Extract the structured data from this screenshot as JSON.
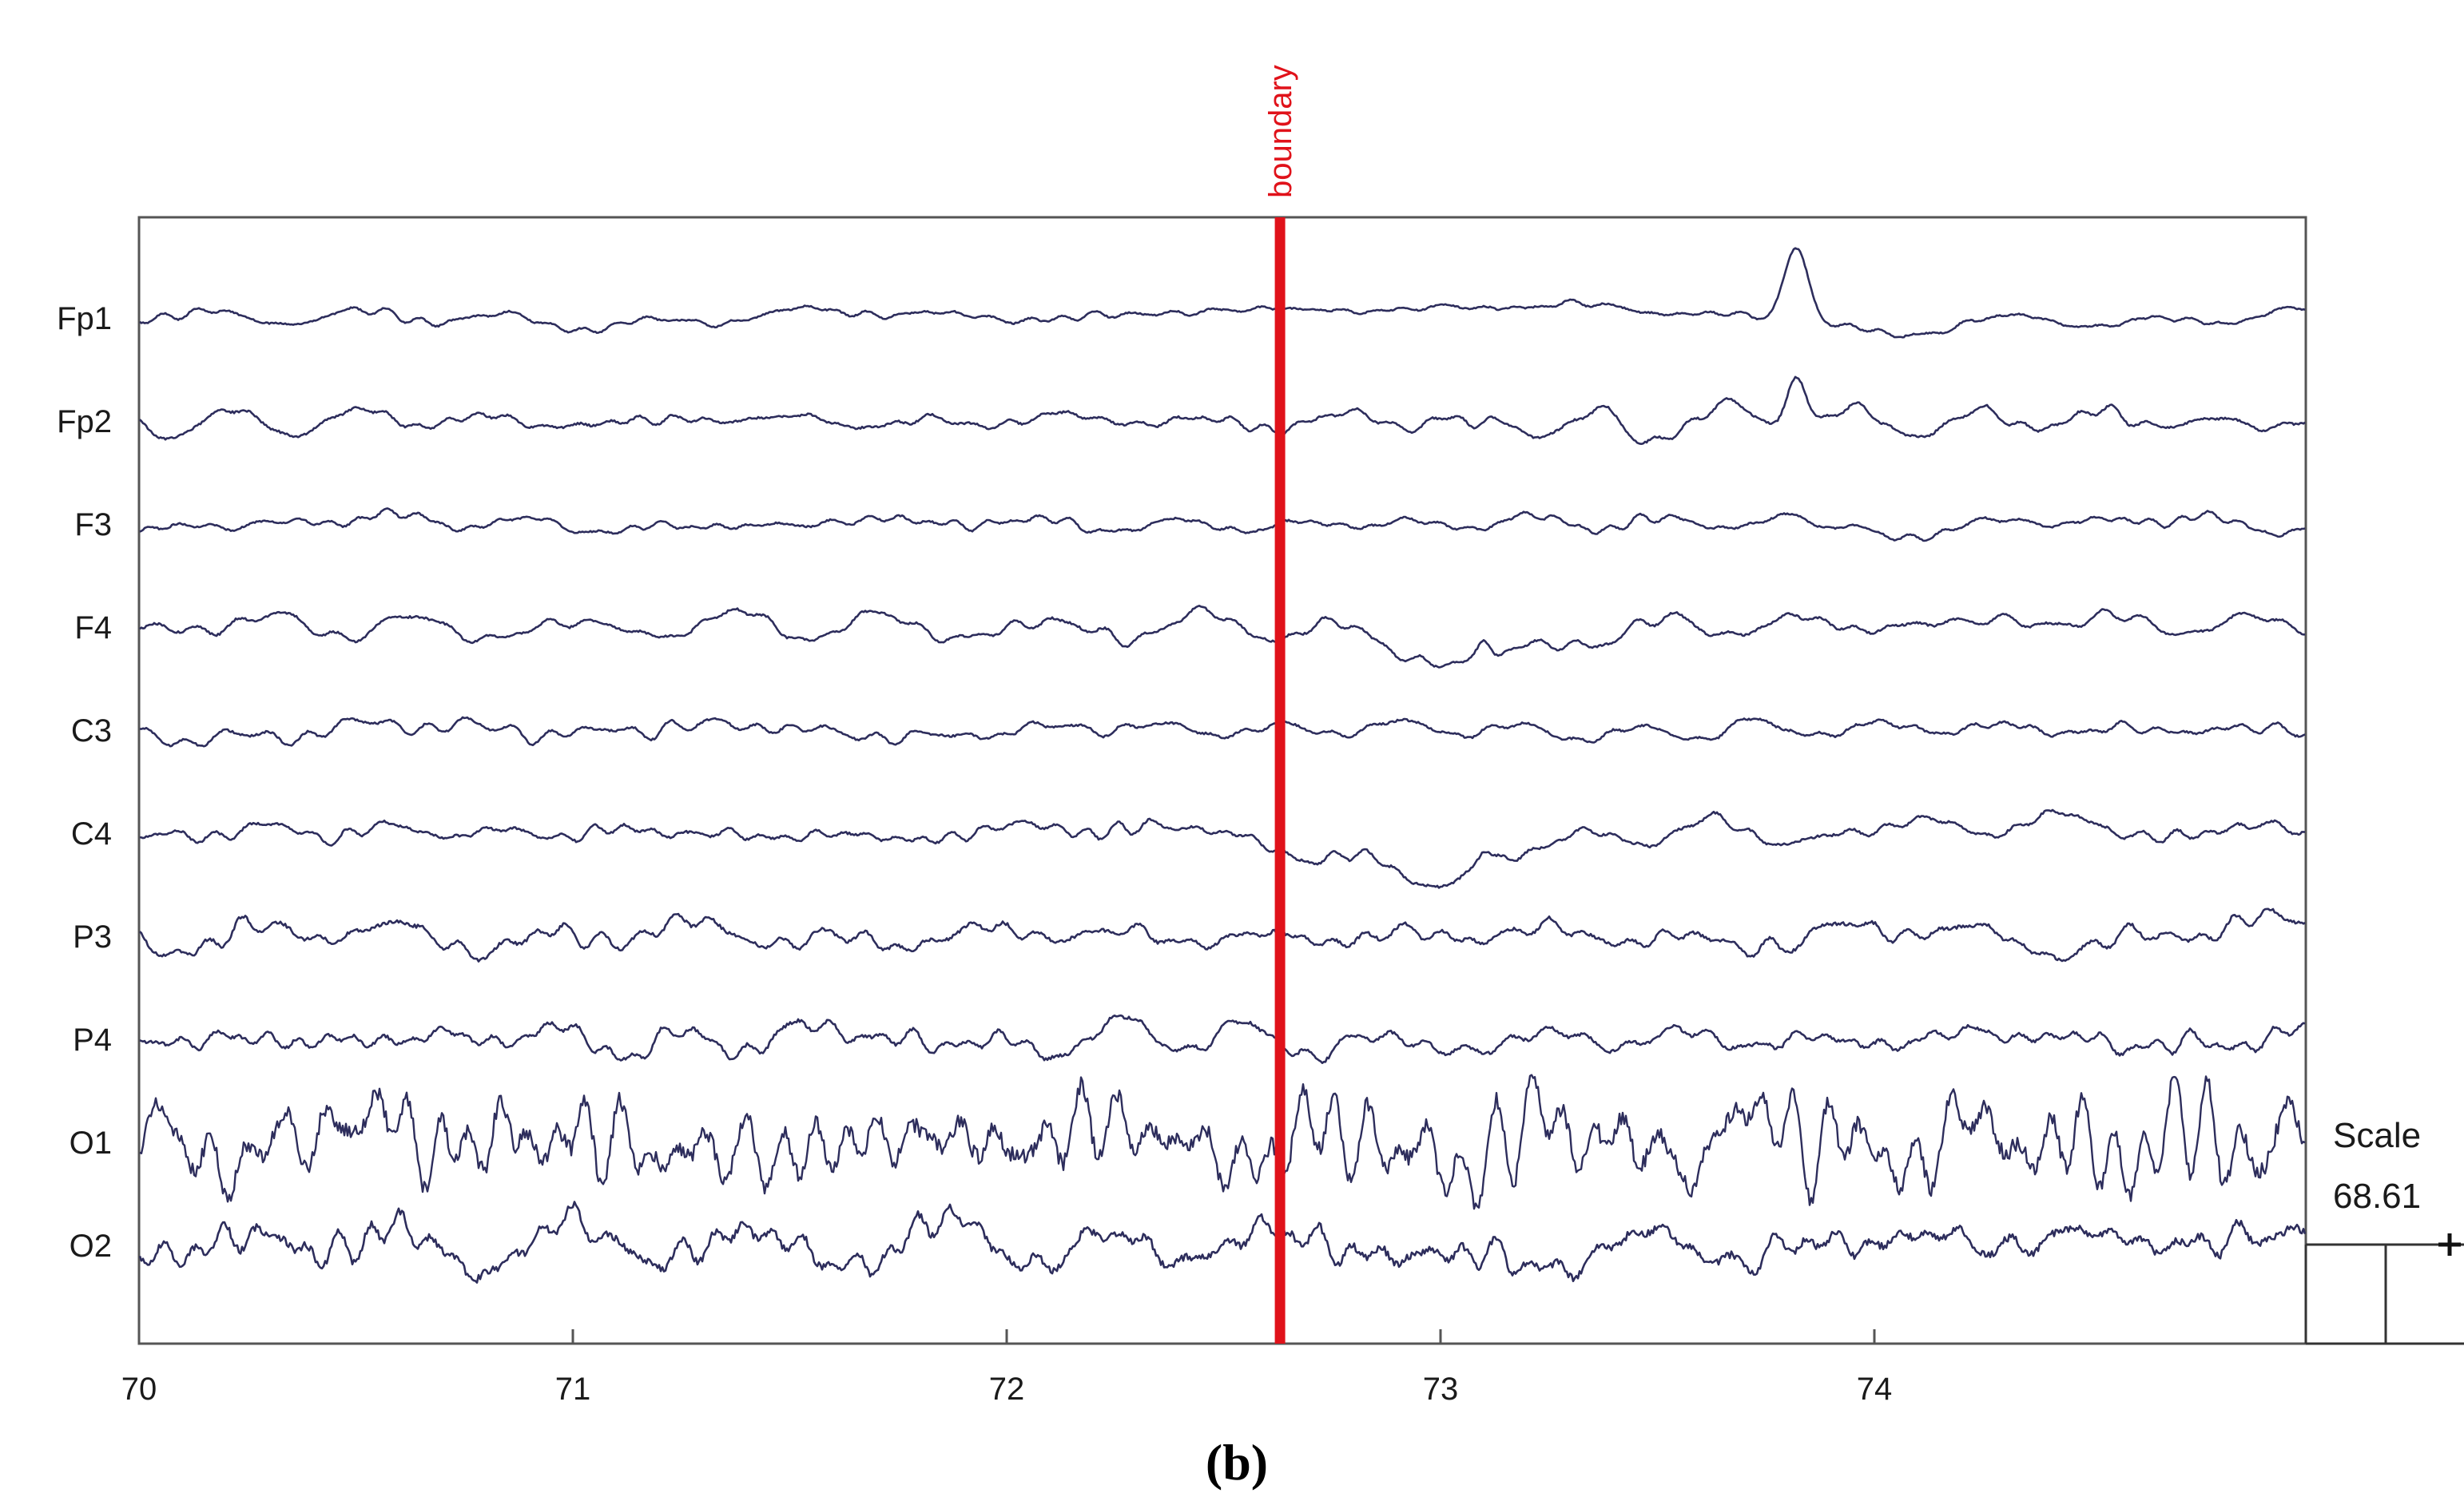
{
  "colors": {
    "trace": "#2d2d5c",
    "boundary": "#e0121a",
    "axis": "#555555",
    "text": "#1a1a1a"
  },
  "panel_label": "(b)",
  "scale": {
    "label": "Scale",
    "value": "68.61"
  },
  "chart_data": {
    "type": "line",
    "title": "",
    "xlabel": "",
    "ylabel": "",
    "xlim": [
      70,
      75
    ],
    "x_ticks": [
      "70",
      "71",
      "72",
      "73",
      "74"
    ],
    "grid": false,
    "legend": "none",
    "boundary_marker": {
      "label": "boundary",
      "x": 72.63
    },
    "channels": [
      {
        "name": "Fp1",
        "seed": 11,
        "amp": 8,
        "hf": 0.45,
        "events": [
          {
            "x": 72.85,
            "shape": "slowrise",
            "a": -18,
            "w": 0.45
          },
          {
            "x": 73.82,
            "shape": "spike",
            "a": -95,
            "w": 0.06
          },
          {
            "x": 74.05,
            "shape": "dip",
            "a": 22,
            "w": 0.15
          }
        ]
      },
      {
        "name": "Fp2",
        "seed": 23,
        "amp": 9,
        "hf": 0.55,
        "events": [
          {
            "x": 73.08,
            "shape": "dip",
            "a": 25,
            "w": 0.04
          },
          {
            "x": 73.45,
            "shape": "dip",
            "a": 20,
            "w": 0.05
          },
          {
            "x": 73.82,
            "shape": "spike",
            "a": -70,
            "w": 0.05
          }
        ]
      },
      {
        "name": "F3",
        "seed": 37,
        "amp": 8,
        "hf": 0.5,
        "events": [
          {
            "x": 73.8,
            "shape": "spike",
            "a": -15,
            "w": 0.08
          },
          {
            "x": 74.05,
            "shape": "dip",
            "a": 14,
            "w": 0.1
          }
        ]
      },
      {
        "name": "F4",
        "seed": 41,
        "amp": 9,
        "hf": 0.55,
        "events": [
          {
            "x": 73.05,
            "shape": "dip",
            "a": 40,
            "w": 0.3
          },
          {
            "x": 73.1,
            "shape": "spike",
            "a": -20,
            "w": 0.03
          },
          {
            "x": 74.4,
            "shape": "slowrise",
            "a": -12,
            "w": 0.25
          }
        ]
      },
      {
        "name": "C3",
        "seed": 53,
        "amp": 8,
        "hf": 0.6,
        "events": [
          {
            "x": 73.7,
            "shape": "spike",
            "a": -12,
            "w": 0.05
          }
        ]
      },
      {
        "name": "C4",
        "seed": 67,
        "amp": 9,
        "hf": 0.6,
        "events": [
          {
            "x": 73.0,
            "shape": "dip",
            "a": 50,
            "w": 0.35
          },
          {
            "x": 73.1,
            "shape": "spike",
            "a": -22,
            "w": 0.03
          },
          {
            "x": 74.3,
            "shape": "slowrise",
            "a": -14,
            "w": 0.3
          }
        ]
      },
      {
        "name": "P3",
        "seed": 79,
        "amp": 10,
        "hf": 0.8,
        "events": [
          {
            "x": 73.83,
            "shape": "dip",
            "a": 14,
            "w": 0.03
          }
        ]
      },
      {
        "name": "P4",
        "seed": 83,
        "amp": 10,
        "hf": 0.8,
        "events": [
          {
            "x": 73.05,
            "shape": "dip",
            "a": 14,
            "w": 0.12
          }
        ]
      },
      {
        "name": "O1",
        "seed": 97,
        "amp": 26,
        "hf": 1.6,
        "events": []
      },
      {
        "name": "O2",
        "seed": 101,
        "amp": 15,
        "hf": 1.2,
        "events": [
          {
            "x": 73.2,
            "shape": "dip",
            "a": 20,
            "w": 0.3
          },
          {
            "x": 74.5,
            "shape": "slowrise",
            "a": -12,
            "w": 0.3
          }
        ]
      }
    ]
  }
}
